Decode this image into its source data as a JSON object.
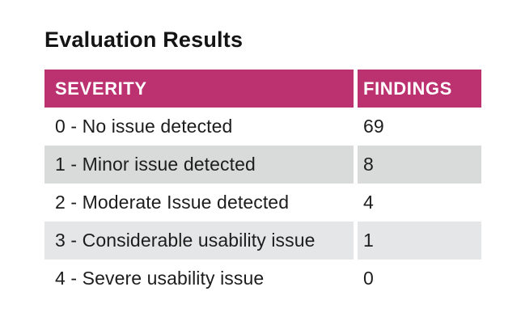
{
  "page": {
    "background": "#ffffff",
    "title": "Evaluation Results"
  },
  "table": {
    "header_bg": "#bc3170",
    "header_text_color": "#ffffff",
    "divider_color": "#ffffff",
    "columns": [
      {
        "label": "SEVERITY"
      },
      {
        "label": "FINDINGS"
      }
    ],
    "rows": [
      {
        "severity": "0 - No issue detected",
        "findings": "69",
        "bg": "#ffffff"
      },
      {
        "severity": "1 - Minor issue detected",
        "findings": "8",
        "bg": "#d9dbdb"
      },
      {
        "severity": "2 - Moderate Issue detected",
        "findings": "4",
        "bg": "#ffffff"
      },
      {
        "severity": "3 - Considerable usability issue",
        "findings": "1",
        "bg": "#e4e6e7"
      },
      {
        "severity": "4 - Severe usability issue",
        "findings": "0",
        "bg": "#ffffff"
      }
    ]
  }
}
